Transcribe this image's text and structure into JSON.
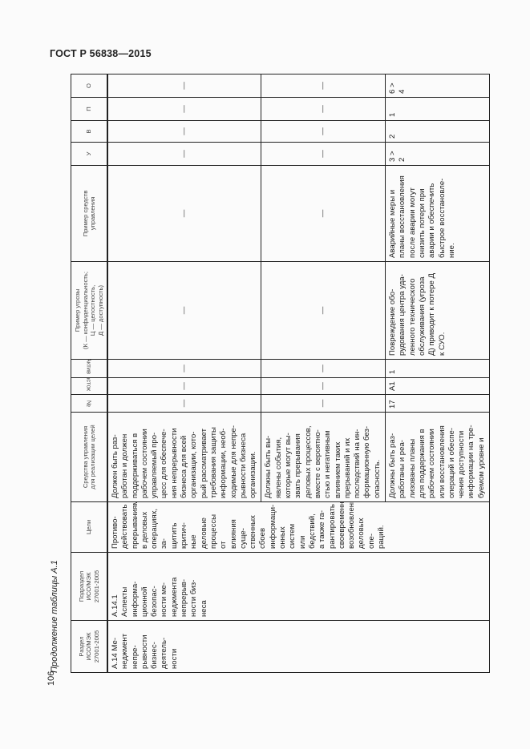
{
  "header": {
    "title": "ГОСТ Р 56838—2015",
    "page_number": "106"
  },
  "caption": "Продолжение таблицы А.1",
  "table": {
    "columns": [
      "Раздел\nИСО/МЭК\n27001-2005",
      "Подраздел\nИСО/МЭК\n27001-2005",
      "Цели",
      "Средства управления\nдля реализации целей",
      "№",
      "Участок",
      "Актив",
      "Пример угрозы\n(К — конфиденциальность;\nЦ — целостность,\nД — доступность)",
      "Пример средств\nуправления",
      "У",
      "В",
      "П",
      "О"
    ],
    "section": "А.14 Ме-\nнеджмент\nнепре-\nрывности\nбизнес-\nдеятель-\nности",
    "subsection": "А.14.1\nАспекты\nинформа-\nционной\nбезопас-\nности ме-\nнеджмента\nнепрерыв-\nности биз-\nнеса",
    "goals": "Противо-\nдействовать\nпрерываниям\nв деловых\nоперациях, за-\nщитить критич-\nные деловые\nпроцессы от\nвлияния суще-\nственных сбоев\nинформаци-\nонных систем\nили бедствий,\nа также га-\nрантировать\nсвоевременное\nвозобновление\nделовых опе-\nраций.",
    "rows": [
      {
        "controls": "Должен быть раз-\nработан и должен\nподдерживаться в\nрабочем состоянии\nуправляемый про-\nцесс для обеспече-\nния непрерывности\nбизнеса для всей\nорганизации, кото-\nрый рассматривает\nтребования защиты\nинформации, необ-\nходимые для непре-\nрывности бизнеса\nорганизации.",
        "num": "—",
        "area": "—",
        "asset": "—",
        "threat": "—",
        "measure": "—",
        "u": "—",
        "v": "—",
        "p": "—",
        "o": "—"
      },
      {
        "controls": "Должны быть вы-\nявлены события,\nкоторые могут вы-\nзвать прерывания\nделовых процессов,\nвместе с вероятно-\nстью и негативным\nвлиянием таких\nпрерываний и их\nпоследствий на ин-\nформационную без-\nопасность.",
        "num": "—",
        "area": "—",
        "asset": "—",
        "threat": "—",
        "measure": "—",
        "u": "—",
        "v": "—",
        "p": "—",
        "o": "—"
      },
      {
        "controls": "Должны быть раз-\nработаны и реа-\nлизованы планы\nдля поддержания в\nрабочем состоянии\nили восстановления\nопераций и обеспе-\nчения доступности\nинформации на тре-\nбуемом уровне и",
        "num": "17",
        "area": "А1",
        "asset": "1",
        "threat": "Повреждение обо-\nрудования центра уда-\nленного технического\nобслуживания (угроза\nД) приводит к потере Д\nк СУО.",
        "measure": "Аварийные меры и\nпланы восстановления\nпосле аварии могут\nснизить потери при\nаварии и обеспечить\nбыстрое восстановле-\nние.",
        "u": "3 > 2",
        "v": "2",
        "p": "1",
        "o": "6 > 4"
      }
    ]
  }
}
